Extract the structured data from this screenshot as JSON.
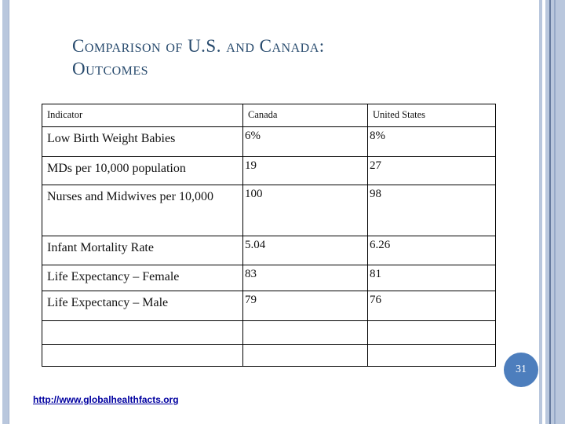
{
  "slide": {
    "title_line1": "Comparison of U.S. and Canada:",
    "title_line2": "Outcomes",
    "page_number": "31",
    "link_text": "http://www.globalhealthfacts.org"
  },
  "table": {
    "columns": [
      "Indicator",
      "Canada",
      "United States"
    ],
    "rows": [
      {
        "indicator": "Low Birth Weight Babies",
        "canada": "6%",
        "us": "8%"
      },
      {
        "indicator": "MDs per 10,000 population",
        "canada": "19",
        "us": "27"
      },
      {
        "indicator": "Nurses and Midwives per 10,000",
        "canada": "100",
        "us": "98"
      },
      {
        "indicator": "Infant Mortality Rate",
        "canada": "5.04",
        "us": "6.26"
      },
      {
        "indicator": "Life Expectancy – Female",
        "canada": "83",
        "us": "81"
      },
      {
        "indicator": "Life Expectancy – Male",
        "canada": "79",
        "us": "76"
      },
      {
        "indicator": "",
        "canada": "",
        "us": ""
      },
      {
        "indicator": "",
        "canada": "",
        "us": ""
      }
    ]
  },
  "colors": {
    "title_color": "#274a6d",
    "accent_light": "#b9c7dd",
    "accent_medium": "#96a9c8",
    "accent_dark": "#64799e",
    "accent_edge": "#a3b3cd",
    "badge_color": "#4d7ebd",
    "link_color": "#0000a0"
  }
}
